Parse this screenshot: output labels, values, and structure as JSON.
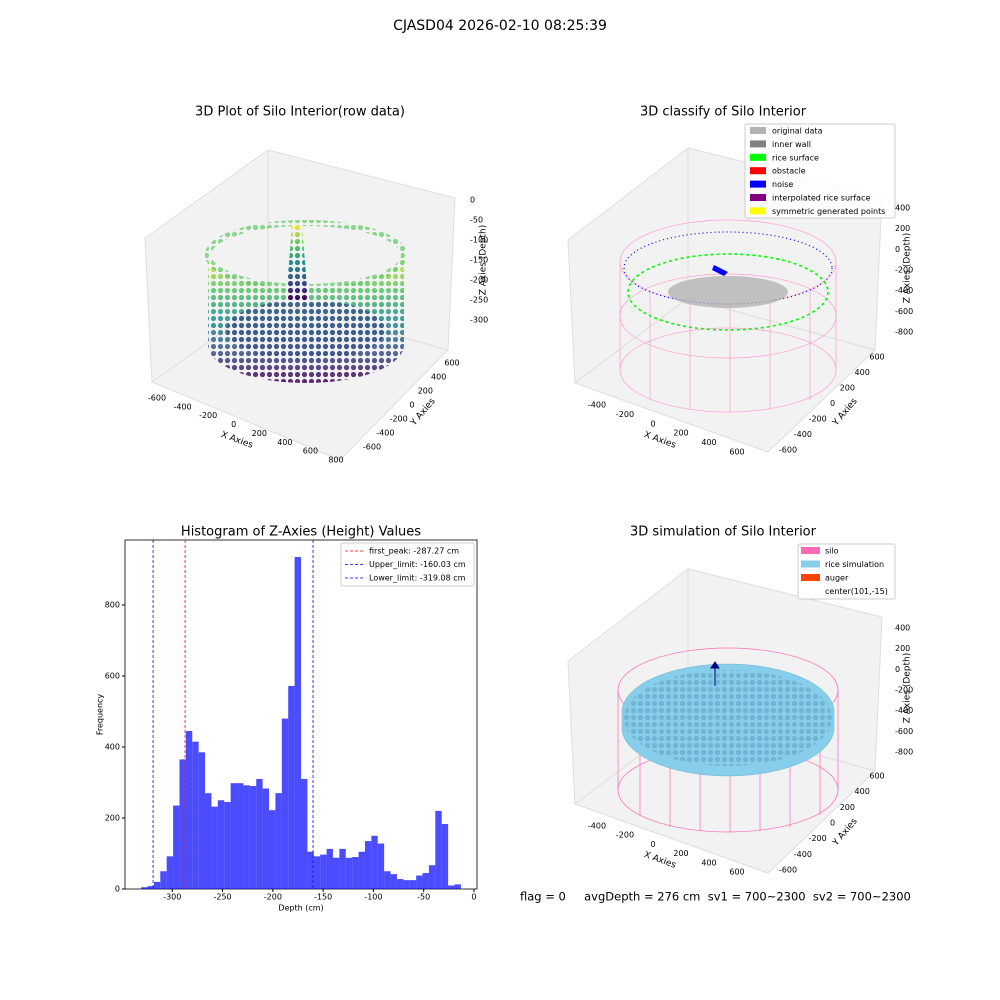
{
  "title": "CJASD04 2026-02-10 08:25:39",
  "footer": "flag = 0     avgDepth = 276 cm  sv1 = 700~2300  sv2 = 700~2300",
  "chart_data": [
    {
      "type": "scatter3d",
      "title": "3D Plot of Silo Interior(row data)",
      "xlabel": "X Axies",
      "ylabel": "Y Axies",
      "zlabel": "Z Axies (Depth)",
      "xticks": [
        -600,
        -400,
        -200,
        0,
        200,
        400,
        600,
        800
      ],
      "yticks": [
        -600,
        -400,
        -200,
        0,
        200,
        400,
        600
      ],
      "zticks": [
        0,
        -50,
        -100,
        -150,
        -200,
        -250,
        -300
      ]
    },
    {
      "type": "scatter3d",
      "title": "3D classify of Silo Interior",
      "xlabel": "X Axies",
      "ylabel": "Y Axies",
      "zlabel": "Z Axies (Depth)",
      "xticks": [
        -400,
        -200,
        0,
        200,
        400,
        600
      ],
      "yticks": [
        -600,
        -400,
        -200,
        0,
        200,
        400,
        600
      ],
      "zticks": [
        400,
        200,
        0,
        -200,
        -400,
        -600,
        -800
      ],
      "legend": [
        {
          "name": "original data",
          "color": "#b3b3b3"
        },
        {
          "name": "inner wall",
          "color": "#808080"
        },
        {
          "name": "rice surface",
          "color": "#00ff00"
        },
        {
          "name": "obstacle",
          "color": "#ff0000"
        },
        {
          "name": "noise",
          "color": "#0000ff"
        },
        {
          "name": "interpolated rice surface",
          "color": "#800080"
        },
        {
          "name": "symmetric generated points",
          "color": "#ffff00"
        }
      ]
    },
    {
      "type": "histogram",
      "title": "Histogram of Z-Axies (Height) Values",
      "xlabel": "Depth (cm)",
      "ylabel": "Frequency",
      "color": "#0000ff",
      "bins": [
        -331,
        -324.64,
        -318.28,
        -311.92,
        -305.56,
        -299.2,
        -292.84,
        -286.48,
        -280.12,
        -273.76,
        -267.4,
        -261.04,
        -254.68,
        -248.32,
        -241.96,
        -235.6,
        -229.24,
        -222.88,
        -216.52,
        -210.16,
        -203.8,
        -197.44,
        -191.08,
        -184.72,
        -178.36,
        -172,
        -165.64,
        -159.28,
        -152.92,
        -146.56,
        -140.2,
        -133.84,
        -127.48,
        -121.12,
        -114.76,
        -108.4,
        -102.04,
        -95.68,
        -89.32,
        -82.96,
        -76.6,
        -70.24,
        -63.88,
        -57.52,
        -51.16,
        -44.8,
        -38.44,
        -32.08,
        -25.72,
        -19.36,
        -13
      ],
      "values": [
        5,
        8,
        20,
        50,
        92,
        235,
        365,
        445,
        415,
        385,
        270,
        232,
        250,
        245,
        298,
        298,
        292,
        290,
        310,
        283,
        222,
        270,
        480,
        572,
        935,
        310,
        105,
        92,
        97,
        113,
        88,
        113,
        88,
        90,
        105,
        135,
        150,
        128,
        50,
        42,
        28,
        25,
        25,
        38,
        45,
        67,
        220,
        183,
        10,
        13
      ],
      "xlim": [
        -347,
        3
      ],
      "ylim": [
        0,
        983
      ],
      "xticks": [
        -300,
        -250,
        -200,
        -150,
        -100,
        -50,
        0
      ],
      "yticks": [
        0,
        200,
        400,
        600,
        800
      ],
      "vlines": [
        {
          "label": "first_peak: -287.27 cm",
          "value": -287.27,
          "color": "#ff0000"
        },
        {
          "label": "Upper_limit: -160.03 cm",
          "value": -160.03,
          "color": "#0000ff"
        },
        {
          "label": "Lower_limit: -319.08 cm",
          "value": -319.08,
          "color": "#0000ff"
        }
      ]
    },
    {
      "type": "scatter3d",
      "title": "3D simulation of Silo Interior",
      "xlabel": "X Axies",
      "ylabel": "Y Axies",
      "zlabel": "Z Axies (Depth)",
      "xticks": [
        -400,
        -200,
        0,
        200,
        400,
        600
      ],
      "yticks": [
        -600,
        -400,
        -200,
        0,
        200,
        400,
        600
      ],
      "zticks": [
        400,
        200,
        0,
        -200,
        -400,
        -600,
        -800
      ],
      "legend": [
        {
          "name": "silo",
          "color": "#ff69b4"
        },
        {
          "name": "rice simulation",
          "color": "#87ceeb"
        },
        {
          "name": "auger",
          "color": "#ff4500"
        },
        {
          "name": "center(101,-15)"
        }
      ]
    }
  ]
}
